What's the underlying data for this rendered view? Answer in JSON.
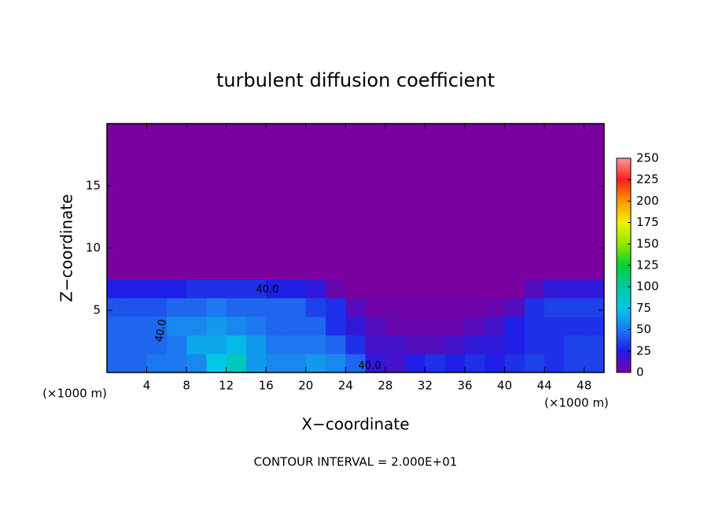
{
  "chart_data": {
    "type": "heatmap",
    "title": "turbulent diffusion coefficient",
    "x_label": "X−coordinate",
    "y_label": "Z−coordinate",
    "x_unit": "(×1000 m)",
    "y_unit": "(×1000 m)",
    "footer": "CONTOUR INTERVAL = 2.000E+01",
    "xlim": [
      0,
      50
    ],
    "ylim": [
      0,
      20
    ],
    "xticks": [
      4,
      8,
      12,
      16,
      20,
      24,
      28,
      32,
      36,
      40,
      44,
      48
    ],
    "yticks": [
      5,
      10,
      15
    ],
    "field": {
      "xbins": [
        0,
        2,
        4,
        6,
        8,
        10,
        12,
        14,
        16,
        18,
        20,
        22,
        24,
        26,
        28,
        30,
        32,
        34,
        36,
        38,
        40,
        42,
        44,
        46,
        48,
        50
      ],
      "ybins": [
        0,
        1.5,
        3,
        4.5,
        6,
        7.5,
        20
      ],
      "values": [
        [
          45,
          45,
          50,
          50,
          55,
          75,
          90,
          60,
          55,
          55,
          60,
          55,
          45,
          20,
          15,
          25,
          30,
          25,
          30,
          25,
          30,
          35,
          30,
          35,
          35
        ],
        [
          45,
          45,
          45,
          50,
          65,
          65,
          70,
          60,
          50,
          50,
          50,
          45,
          30,
          15,
          15,
          10,
          10,
          15,
          20,
          20,
          25,
          30,
          30,
          35,
          35
        ],
        [
          45,
          45,
          45,
          55,
          55,
          60,
          55,
          50,
          45,
          45,
          45,
          30,
          20,
          10,
          5,
          5,
          5,
          5,
          10,
          15,
          25,
          30,
          30,
          30,
          30
        ],
        [
          40,
          40,
          40,
          45,
          45,
          50,
          45,
          45,
          45,
          45,
          35,
          30,
          10,
          3,
          3,
          3,
          3,
          3,
          3,
          5,
          10,
          30,
          35,
          35,
          35
        ],
        [
          25,
          25,
          25,
          25,
          30,
          30,
          30,
          30,
          25,
          25,
          20,
          5,
          0,
          0,
          0,
          0,
          0,
          0,
          0,
          0,
          0,
          10,
          20,
          20,
          20
        ],
        [
          0,
          0,
          0,
          0,
          0,
          0,
          0,
          0,
          0,
          0,
          0,
          0,
          0,
          0,
          0,
          0,
          0,
          0,
          0,
          0,
          0,
          0,
          0,
          0,
          0
        ]
      ]
    },
    "contour_labels": [
      "40.0",
      "40.0",
      "40.0"
    ],
    "colorbar": {
      "lim": [
        0,
        250
      ],
      "ticks": [
        0,
        25,
        50,
        75,
        100,
        125,
        150,
        175,
        200,
        225,
        250
      ],
      "colors": [
        "#7a00a0",
        "#1e1ee6",
        "#1e78f0",
        "#00c8e6",
        "#00c8a0",
        "#00d232",
        "#96e600",
        "#f0f000",
        "#ff9600",
        "#ff1e1e",
        "#ff9696"
      ]
    }
  }
}
